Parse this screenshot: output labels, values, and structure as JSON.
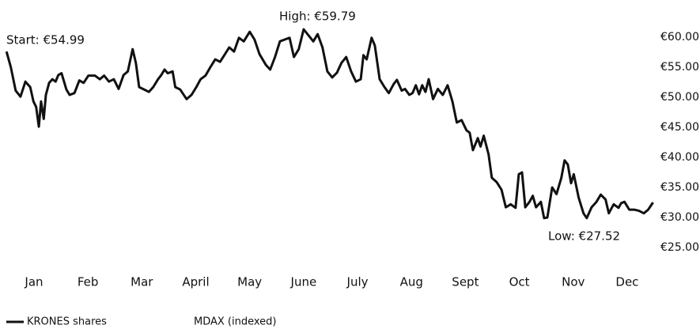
{
  "chart_data": {
    "type": "line",
    "annotations": [
      {
        "text": "Start: €54.99"
      },
      {
        "text": "High: €59.79"
      },
      {
        "text": "Low: €27.52"
      }
    ],
    "xlim": [
      -0.5,
      11.5
    ],
    "xticks": [
      {
        "value": 0,
        "label": "Jan"
      },
      {
        "value": 1,
        "label": "Feb"
      },
      {
        "value": 2,
        "label": "Mar"
      },
      {
        "value": 3,
        "label": "April"
      },
      {
        "value": 4,
        "label": "May"
      },
      {
        "value": 5,
        "label": "June"
      },
      {
        "value": 6,
        "label": "July"
      },
      {
        "value": 7,
        "label": "Aug"
      },
      {
        "value": 8,
        "label": "Sept"
      },
      {
        "value": 9,
        "label": "Oct"
      },
      {
        "value": 10,
        "label": "Nov"
      },
      {
        "value": 11,
        "label": "Dec"
      }
    ],
    "ylim": [
      25,
      60
    ],
    "yticks": [
      {
        "value": 25,
        "label": "€25.00"
      },
      {
        "value": 30,
        "label": "€30.00"
      },
      {
        "value": 35,
        "label": "€35.00"
      },
      {
        "value": 40,
        "label": "€40.00"
      },
      {
        "value": 45,
        "label": "€45.00"
      },
      {
        "value": 50,
        "label": "€50.00"
      },
      {
        "value": 55,
        "label": "€55.00"
      },
      {
        "value": 60,
        "label": "€60.00"
      }
    ],
    "grid": false,
    "legend": [
      {
        "label": "KRONES shares",
        "color": "#111111"
      },
      {
        "label": "MDAX (indexed)"
      }
    ],
    "series": [
      {
        "name": "KRONES shares",
        "color": "#111111",
        "x": [
          -0.51,
          -0.43,
          -0.34,
          -0.25,
          -0.16,
          -0.07,
          -0.01,
          0.04,
          0.09,
          0.13,
          0.18,
          0.22,
          0.28,
          0.34,
          0.4,
          0.45,
          0.51,
          0.6,
          0.66,
          0.75,
          0.84,
          0.92,
          1.01,
          1.13,
          1.22,
          1.3,
          1.39,
          1.48,
          1.57,
          1.66,
          1.74,
          1.83,
          1.89,
          1.95,
          2.04,
          2.13,
          2.21,
          2.3,
          2.36,
          2.42,
          2.48,
          2.57,
          2.62,
          2.71,
          2.83,
          2.92,
          3.01,
          3.09,
          3.18,
          3.27,
          3.36,
          3.45,
          3.53,
          3.62,
          3.71,
          3.8,
          3.89,
          4.0,
          4.09,
          4.18,
          4.3,
          4.38,
          4.47,
          4.56,
          4.65,
          4.74,
          4.82,
          4.91,
          5.0,
          5.09,
          5.18,
          5.26,
          5.35,
          5.44,
          5.53,
          5.62,
          5.7,
          5.79,
          5.88,
          5.97,
          6.06,
          6.11,
          6.17,
          6.26,
          6.32,
          6.41,
          6.5,
          6.58,
          6.67,
          6.73,
          6.82,
          6.88,
          6.96,
          7.02,
          7.08,
          7.14,
          7.2,
          7.26,
          7.32,
          7.4,
          7.49,
          7.58,
          7.67,
          7.76,
          7.84,
          7.93,
          8.02,
          8.08,
          8.14,
          8.23,
          8.28,
          8.34,
          8.43,
          8.49,
          8.58,
          8.67,
          8.75,
          8.84,
          8.93,
          8.99,
          9.05,
          9.11,
          9.19,
          9.25,
          9.31,
          9.4,
          9.46,
          9.52,
          9.61,
          9.69,
          9.78,
          9.84,
          9.9,
          9.96,
          10.01,
          10.1,
          10.19,
          10.25,
          10.34,
          10.43,
          10.51,
          10.6,
          10.66,
          10.75,
          10.84,
          10.89,
          10.95,
          11.04,
          11.13,
          11.22,
          11.31,
          11.39,
          11.48
        ],
        "values": [
          57.6,
          55.0,
          51.1,
          50.1,
          52.6,
          51.7,
          49.3,
          48.4,
          45.1,
          49.3,
          46.4,
          50.4,
          52.4,
          53.0,
          52.6,
          53.7,
          54.0,
          51.3,
          50.4,
          50.7,
          52.8,
          52.4,
          53.6,
          53.6,
          53.0,
          53.6,
          52.6,
          53.0,
          51.4,
          53.7,
          54.3,
          58.0,
          55.7,
          51.7,
          51.3,
          50.9,
          51.7,
          53.0,
          53.7,
          54.6,
          54.0,
          54.3,
          51.7,
          51.3,
          49.7,
          50.4,
          51.7,
          53.0,
          53.6,
          55.0,
          56.3,
          55.9,
          57.0,
          58.3,
          57.6,
          59.9,
          59.3,
          60.9,
          59.6,
          57.2,
          55.4,
          54.6,
          56.7,
          59.3,
          59.6,
          59.9,
          56.7,
          58.0,
          61.3,
          60.3,
          59.3,
          60.5,
          58.3,
          54.3,
          53.3,
          54.1,
          55.7,
          56.7,
          54.3,
          52.6,
          53.0,
          57.0,
          56.3,
          59.9,
          58.6,
          53.0,
          51.7,
          50.7,
          52.2,
          52.9,
          51.1,
          51.4,
          50.4,
          50.7,
          52.0,
          50.5,
          52.0,
          50.9,
          53.0,
          49.7,
          51.4,
          50.4,
          52.0,
          49.3,
          45.8,
          46.2,
          44.5,
          44.1,
          41.2,
          43.2,
          41.8,
          43.6,
          40.5,
          36.6,
          35.9,
          34.6,
          31.7,
          32.2,
          31.6,
          37.2,
          37.5,
          31.7,
          32.6,
          33.6,
          31.7,
          32.6,
          29.9,
          30.0,
          35.0,
          33.9,
          36.6,
          39.5,
          38.8,
          35.7,
          37.2,
          33.3,
          30.7,
          29.9,
          31.7,
          32.6,
          33.8,
          33.0,
          30.7,
          32.2,
          31.6,
          32.4,
          32.6,
          31.3,
          31.3,
          31.1,
          30.7,
          31.3,
          32.5
        ]
      }
    ]
  }
}
